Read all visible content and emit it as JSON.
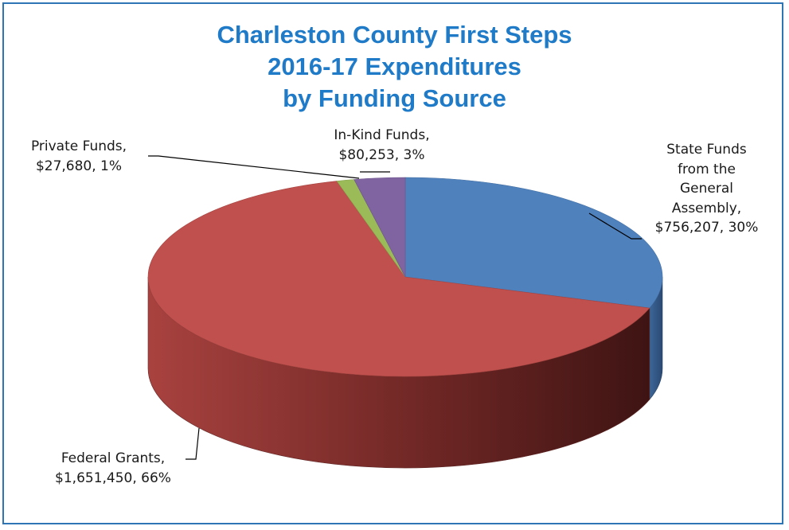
{
  "chart_data": {
    "type": "pie",
    "title_lines": [
      "Charleston County First Steps",
      "2016-17 Expenditures",
      "by Funding Source"
    ],
    "slices": [
      {
        "name": "State Funds from the General Assembly",
        "value": 756207,
        "percent": 30,
        "color": "#4f81bd",
        "label_lines": [
          "State Funds",
          "from the",
          "General",
          "Assembly,",
          "$756,207, 30%"
        ]
      },
      {
        "name": "Federal Grants",
        "value": 1651450,
        "percent": 66,
        "color": "#c0504d",
        "label_lines": [
          "Federal Grants,",
          "$1,651,450, 66%"
        ]
      },
      {
        "name": "Private Funds",
        "value": 27680,
        "percent": 1,
        "color": "#9bbb59",
        "label_lines": [
          "Private Funds,",
          "$27,680, 1%"
        ]
      },
      {
        "name": "In-Kind Funds",
        "value": 80253,
        "percent": 3,
        "color": "#8064a2",
        "label_lines": [
          "In-Kind Funds,",
          "$80,253, 3%"
        ]
      }
    ],
    "legend": "none",
    "style": "3d"
  }
}
